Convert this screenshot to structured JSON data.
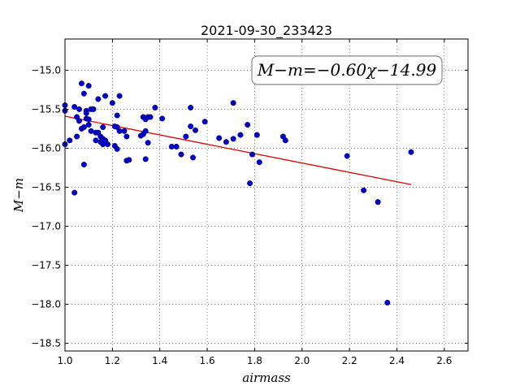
{
  "chart_data": {
    "type": "scatter",
    "title": "2021-09-30_233423",
    "xlabel": "airmass",
    "ylabel": "M−m",
    "xlim": [
      1.0,
      2.7
    ],
    "ylim": [
      -18.6,
      -14.6
    ],
    "y_inverted": true,
    "grid": true,
    "xticks": [
      1.0,
      1.2,
      1.4,
      1.6,
      1.8,
      2.0,
      2.2,
      2.4,
      2.6
    ],
    "xtick_labels": [
      "1.0",
      "1.2",
      "1.4",
      "1.6",
      "1.8",
      "2.0",
      "2.2",
      "2.4",
      "2.6"
    ],
    "yticks": [
      -15.0,
      -15.5,
      -16.0,
      -16.5,
      -17.0,
      -17.5,
      -18.0,
      -18.5
    ],
    "ytick_labels": [
      "−15.0",
      "−15.5",
      "−16.0",
      "−16.5",
      "−17.0",
      "−17.5",
      "−18.0",
      "−18.5"
    ],
    "annotation": "M−m=−0.60χ−14.99",
    "fit": {
      "slope": -0.6,
      "intercept": -14.99,
      "x_range": [
        1.0,
        2.46
      ],
      "color": "#dd0000"
    },
    "point_color": "#0000cc",
    "points": [
      {
        "x": 1.0,
        "y": -15.45
      },
      {
        "x": 1.0,
        "y": -15.52
      },
      {
        "x": 1.0,
        "y": -15.95
      },
      {
        "x": 1.02,
        "y": -15.9
      },
      {
        "x": 1.04,
        "y": -15.47
      },
      {
        "x": 1.04,
        "y": -16.57
      },
      {
        "x": 1.05,
        "y": -15.6
      },
      {
        "x": 1.05,
        "y": -15.85
      },
      {
        "x": 1.06,
        "y": -15.5
      },
      {
        "x": 1.06,
        "y": -15.65
      },
      {
        "x": 1.07,
        "y": -15.17
      },
      {
        "x": 1.07,
        "y": -15.75
      },
      {
        "x": 1.08,
        "y": -15.3
      },
      {
        "x": 1.08,
        "y": -15.73
      },
      {
        "x": 1.08,
        "y": -16.21
      },
      {
        "x": 1.09,
        "y": -15.52
      },
      {
        "x": 1.09,
        "y": -15.62
      },
      {
        "x": 1.09,
        "y": -15.55
      },
      {
        "x": 1.1,
        "y": -15.2
      },
      {
        "x": 1.1,
        "y": -15.7
      },
      {
        "x": 1.1,
        "y": -15.63
      },
      {
        "x": 1.11,
        "y": -15.5
      },
      {
        "x": 1.11,
        "y": -15.78
      },
      {
        "x": 1.12,
        "y": -15.5
      },
      {
        "x": 1.13,
        "y": -15.8
      },
      {
        "x": 1.13,
        "y": -15.9
      },
      {
        "x": 1.14,
        "y": -15.37
      },
      {
        "x": 1.14,
        "y": -15.8
      },
      {
        "x": 1.15,
        "y": -15.85
      },
      {
        "x": 1.15,
        "y": -15.92
      },
      {
        "x": 1.16,
        "y": -15.95
      },
      {
        "x": 1.16,
        "y": -15.73
      },
      {
        "x": 1.16,
        "y": -15.88
      },
      {
        "x": 1.17,
        "y": -15.33
      },
      {
        "x": 1.17,
        "y": -15.9
      },
      {
        "x": 1.18,
        "y": -15.95
      },
      {
        "x": 1.2,
        "y": -15.42
      },
      {
        "x": 1.21,
        "y": -15.72
      },
      {
        "x": 1.21,
        "y": -15.97
      },
      {
        "x": 1.22,
        "y": -16.01
      },
      {
        "x": 1.22,
        "y": -15.58
      },
      {
        "x": 1.22,
        "y": -15.73
      },
      {
        "x": 1.23,
        "y": -15.33
      },
      {
        "x": 1.23,
        "y": -15.78
      },
      {
        "x": 1.25,
        "y": -15.78
      },
      {
        "x": 1.26,
        "y": -15.85
      },
      {
        "x": 1.26,
        "y": -16.16
      },
      {
        "x": 1.27,
        "y": -16.15
      },
      {
        "x": 1.32,
        "y": -15.84
      },
      {
        "x": 1.33,
        "y": -15.6
      },
      {
        "x": 1.33,
        "y": -15.82
      },
      {
        "x": 1.34,
        "y": -15.78
      },
      {
        "x": 1.34,
        "y": -15.63
      },
      {
        "x": 1.34,
        "y": -16.14
      },
      {
        "x": 1.35,
        "y": -15.93
      },
      {
        "x": 1.35,
        "y": -15.6
      },
      {
        "x": 1.36,
        "y": -15.6
      },
      {
        "x": 1.38,
        "y": -15.48
      },
      {
        "x": 1.41,
        "y": -15.62
      },
      {
        "x": 1.45,
        "y": -15.98
      },
      {
        "x": 1.47,
        "y": -15.98
      },
      {
        "x": 1.49,
        "y": -16.08
      },
      {
        "x": 1.51,
        "y": -15.85
      },
      {
        "x": 1.53,
        "y": -15.72
      },
      {
        "x": 1.53,
        "y": -15.48
      },
      {
        "x": 1.54,
        "y": -16.12
      },
      {
        "x": 1.55,
        "y": -15.77
      },
      {
        "x": 1.59,
        "y": -15.66
      },
      {
        "x": 1.65,
        "y": -15.87
      },
      {
        "x": 1.68,
        "y": -15.92
      },
      {
        "x": 1.71,
        "y": -15.88
      },
      {
        "x": 1.71,
        "y": -15.42
      },
      {
        "x": 1.74,
        "y": -15.83
      },
      {
        "x": 1.77,
        "y": -15.7
      },
      {
        "x": 1.78,
        "y": -16.45
      },
      {
        "x": 1.79,
        "y": -16.08
      },
      {
        "x": 1.81,
        "y": -15.83
      },
      {
        "x": 1.82,
        "y": -16.18
      },
      {
        "x": 1.92,
        "y": -15.85
      },
      {
        "x": 1.93,
        "y": -15.9
      },
      {
        "x": 2.19,
        "y": -16.1
      },
      {
        "x": 2.26,
        "y": -16.54
      },
      {
        "x": 2.32,
        "y": -16.69
      },
      {
        "x": 2.36,
        "y": -17.98
      },
      {
        "x": 2.46,
        "y": -16.05
      }
    ]
  }
}
